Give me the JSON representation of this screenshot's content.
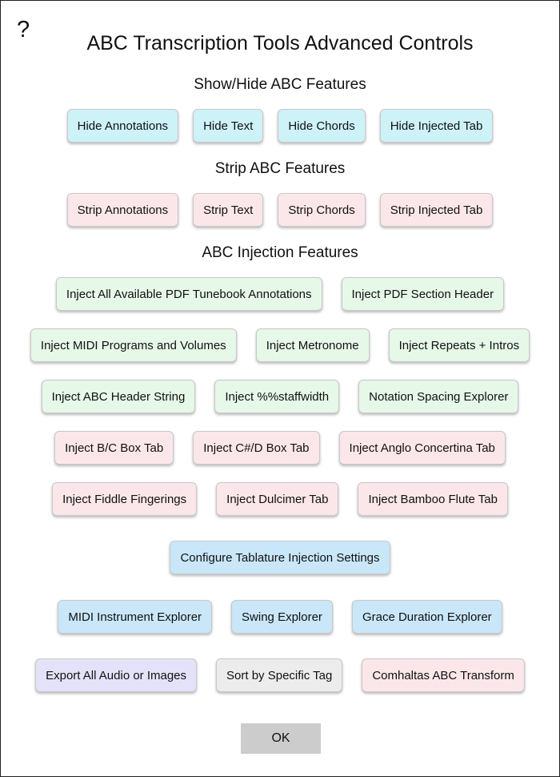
{
  "dialog": {
    "help": "?",
    "title": "ABC Transcription Tools Advanced Controls"
  },
  "show_hide": {
    "heading": "Show/Hide ABC Features",
    "buttons": [
      "Hide Annotations",
      "Hide Text",
      "Hide Chords",
      "Hide Injected Tab"
    ]
  },
  "strip": {
    "heading": "Strip ABC Features",
    "buttons": [
      "Strip Annotations",
      "Strip Text",
      "Strip Chords",
      "Strip Injected Tab"
    ]
  },
  "injection": {
    "heading": "ABC Injection Features",
    "row1": [
      "Inject All Available PDF Tunebook Annotations",
      "Inject PDF Section Header"
    ],
    "row2": [
      "Inject MIDI Programs and Volumes",
      "Inject Metronome",
      "Inject Repeats + Intros"
    ],
    "row3": [
      "Inject ABC Header String",
      "Inject %%staffwidth",
      "Notation Spacing Explorer"
    ],
    "row4": [
      "Inject B/C Box Tab",
      "Inject C#/D Box Tab",
      "Inject Anglo Concertina Tab"
    ],
    "row5": [
      "Inject Fiddle Fingerings",
      "Inject Dulcimer Tab",
      "Inject Bamboo Flute Tab"
    ]
  },
  "config": {
    "button": "Configure Tablature Injection Settings"
  },
  "explorers": {
    "buttons": [
      "MIDI Instrument Explorer",
      "Swing Explorer",
      "Grace Duration Explorer"
    ]
  },
  "tools": {
    "buttons": [
      "Export All Audio or Images",
      "Sort by Specific Tag",
      "Comhaltas ABC Transform"
    ]
  },
  "ok_label": "OK",
  "colors": {
    "hide": "#cdf2f8",
    "strip": "#fbe7ea",
    "inject": "#e6f8e8",
    "tab_inject": "#fbe7ea",
    "config": "#c9e7f8",
    "explorer": "#c9e7f8",
    "export": "#e4e2f8",
    "sort": "#ececec",
    "comhaltas": "#fbe7ea",
    "ok": "#cccccc"
  }
}
